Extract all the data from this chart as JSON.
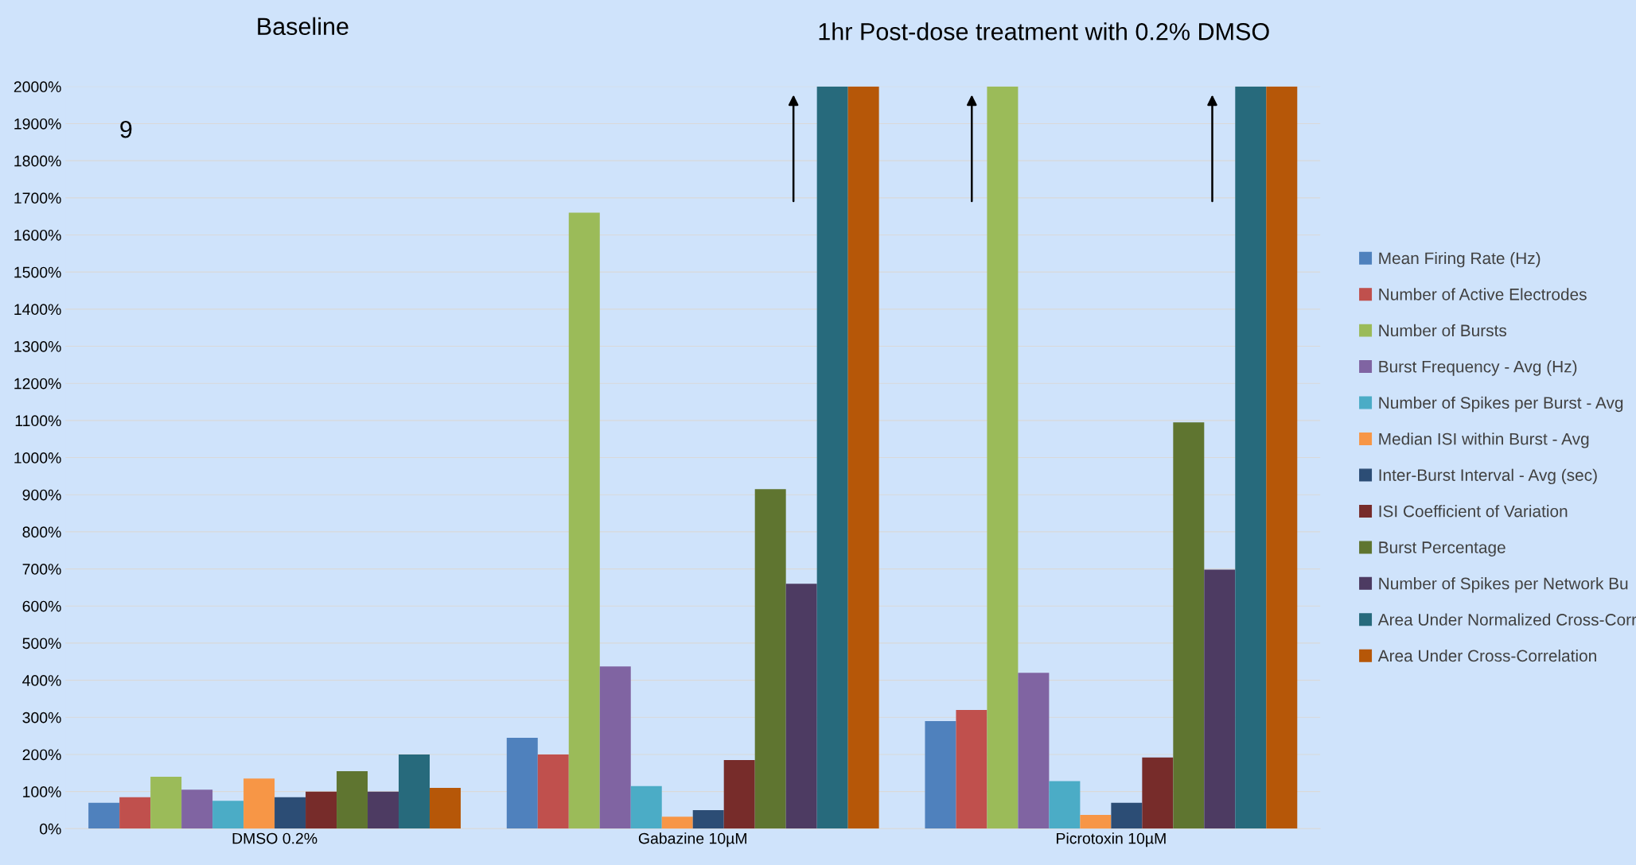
{
  "chart_data": {
    "type": "bar",
    "title": "Baseline",
    "subtitle": "1hr Post-dose treatment with 0.2% DMSO",
    "annotations": [
      "9"
    ],
    "categories": [
      "DMSO 0.2%",
      "Gabazine 10µM",
      "Picrotoxin 10µM"
    ],
    "series": [
      {
        "name": "Mean Firing Rate (Hz)",
        "color": "#4f81bd",
        "values": [
          70,
          245,
          290
        ]
      },
      {
        "name": "Number of Active Electrodes",
        "color": "#c0504d",
        "values": [
          85,
          200,
          320
        ]
      },
      {
        "name": "Number of Bursts",
        "color": "#9bbb59",
        "values": [
          140,
          1660,
          2000
        ]
      },
      {
        "name": "Burst Frequency - Avg (Hz)",
        "color": "#8064a2",
        "values": [
          105,
          437,
          420
        ]
      },
      {
        "name": "Number of Spikes per Burst - Avg",
        "color": "#4bacc6",
        "values": [
          75,
          115,
          128
        ]
      },
      {
        "name": "Median ISI within Burst - Avg",
        "color": "#f79646",
        "values": [
          135,
          32,
          37
        ]
      },
      {
        "name": "Inter-Burst Interval - Avg (sec)",
        "color": "#2c4d75",
        "values": [
          85,
          50,
          70
        ]
      },
      {
        "name": "ISI Coefficient of Variation",
        "color": "#772c2a",
        "values": [
          100,
          185,
          192
        ]
      },
      {
        "name": "Burst Percentage",
        "color": "#5f7530",
        "values": [
          155,
          915,
          1095
        ]
      },
      {
        "name": "Number of Spikes per Network Bu",
        "color": "#4d3b62",
        "values": [
          100,
          660,
          698
        ]
      },
      {
        "name": "Area Under Normalized Cross-Corr",
        "color": "#276a7c",
        "values": [
          200,
          2000,
          2000
        ]
      },
      {
        "name": "Area Under Cross-Correlation",
        "color": "#b65708",
        "values": [
          110,
          2000,
          2000
        ]
      }
    ],
    "ylim": [
      0,
      2000
    ],
    "yticks": [
      {
        "value": 0,
        "label": "0%"
      },
      {
        "value": 100,
        "label": "100%"
      },
      {
        "value": 200,
        "label": "200%"
      },
      {
        "value": 300,
        "label": "300%"
      },
      {
        "value": 400,
        "label": "400%"
      },
      {
        "value": 500,
        "label": "500%"
      },
      {
        "value": 600,
        "label": "600%"
      },
      {
        "value": 700,
        "label": "700%"
      },
      {
        "value": 800,
        "label": "800%"
      },
      {
        "value": 900,
        "label": "900%"
      },
      {
        "value": 1000,
        "label": "1000%"
      },
      {
        "value": 1100,
        "label": "1100%"
      },
      {
        "value": 1200,
        "label": "1200%"
      },
      {
        "value": 1300,
        "label": "1300%"
      },
      {
        "value": 1400,
        "label": "1400%"
      },
      {
        "value": 1500,
        "label": "1500%"
      },
      {
        "value": 1600,
        "label": "1600%"
      },
      {
        "value": 1700,
        "label": "1700%"
      },
      {
        "value": 1800,
        "label": "1800%"
      },
      {
        "value": 1900,
        "label": "1900%"
      },
      {
        "value": 2000,
        "label": "2000%"
      }
    ],
    "grid": "y",
    "legend": "right"
  }
}
